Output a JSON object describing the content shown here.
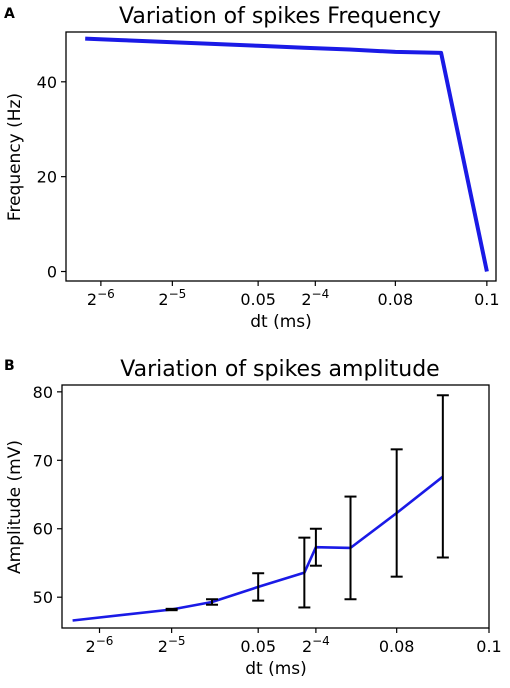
{
  "colors": {
    "line": "#1a1ae6",
    "errorbar": "#000000"
  },
  "chart_data": [
    {
      "panel": "A",
      "type": "line",
      "title": "Variation of spikes Frequency",
      "xlabel": "dt (ms)",
      "ylabel": "Frequency (Hz)",
      "grid": false,
      "xscale": "linear",
      "xlim": [
        0.008,
        0.102
      ],
      "ylim": [
        -2,
        50.5
      ],
      "xticks": [
        {
          "value": 0.015625,
          "base": "2",
          "exp": "−6"
        },
        {
          "value": 0.03125,
          "base": "2",
          "exp": "−5"
        },
        {
          "value": 0.05,
          "label": "0.05"
        },
        {
          "value": 0.0625,
          "base": "2",
          "exp": "−4"
        },
        {
          "value": 0.08,
          "label": "0.08"
        },
        {
          "value": 0.1,
          "label": "0.1"
        }
      ],
      "yticks": [
        {
          "value": 0,
          "label": "0"
        },
        {
          "value": 20,
          "label": "20"
        },
        {
          "value": 40,
          "label": "40"
        }
      ],
      "series": [
        {
          "x": [
            0.0122,
            0.02,
            0.03,
            0.04,
            0.05,
            0.06,
            0.07,
            0.08,
            0.09,
            0.1
          ],
          "y": [
            49.1,
            48.8,
            48.4,
            48.0,
            47.6,
            47.2,
            46.8,
            46.3,
            46.1,
            0
          ]
        }
      ]
    },
    {
      "panel": "B",
      "type": "line",
      "title": "Variation of spikes amplitude",
      "xlabel": "dt (ms)",
      "ylabel": "Amplitude (mV)",
      "grid": false,
      "xscale": "linear",
      "xlim": [
        0.0075,
        0.1
      ],
      "ylim": [
        45.5,
        81
      ],
      "xticks": [
        {
          "value": 0.015625,
          "base": "2",
          "exp": "−6"
        },
        {
          "value": 0.03125,
          "base": "2",
          "exp": "−5"
        },
        {
          "value": 0.05,
          "label": "0.05"
        },
        {
          "value": 0.0625,
          "base": "2",
          "exp": "−4"
        },
        {
          "value": 0.08,
          "label": "0.08"
        },
        {
          "value": 0.1,
          "label": "0.1"
        }
      ],
      "yticks": [
        {
          "value": 50,
          "label": "50"
        },
        {
          "value": 60,
          "label": "60"
        },
        {
          "value": 70,
          "label": "70"
        },
        {
          "value": 80,
          "label": "80"
        }
      ],
      "series": [
        {
          "x": [
            0.0098,
            0.03125,
            0.04,
            0.05,
            0.06,
            0.0625,
            0.07,
            0.08,
            0.09
          ],
          "y": [
            46.6,
            48.2,
            49.3,
            51.5,
            53.6,
            57.3,
            57.2,
            62.3,
            67.6
          ],
          "err_low": [
            46.6,
            48.1,
            48.9,
            49.5,
            48.5,
            54.6,
            49.7,
            53.0,
            55.8
          ],
          "err_high": [
            46.6,
            48.3,
            49.7,
            53.5,
            58.7,
            60.0,
            64.7,
            71.6,
            79.5
          ]
        }
      ]
    }
  ]
}
